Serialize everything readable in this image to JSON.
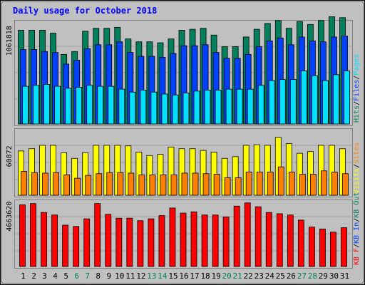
{
  "chart_data": [
    {
      "type": "bar",
      "title": "Daily usage for October 2018",
      "categories": [
        "1",
        "2",
        "3",
        "4",
        "5",
        "6",
        "7",
        "8",
        "9",
        "10",
        "11",
        "12",
        "13",
        "14",
        "15",
        "16",
        "17",
        "18",
        "19",
        "20",
        "21",
        "22",
        "23",
        "24",
        "25",
        "26",
        "27",
        "28",
        "29",
        "30",
        "31"
      ],
      "weekend_days": [
        "6",
        "7",
        "13",
        "14",
        "20",
        "21",
        "27",
        "28"
      ],
      "ylim": [
        0,
        1061818
      ],
      "scale_max_label": "1061818",
      "grid": true,
      "legend": {
        "placement": "right",
        "items": [
          {
            "label": "Hits",
            "color": "#00805c"
          },
          {
            "label": "Files",
            "color": "#0040ff"
          },
          {
            "label": "Pages",
            "color": "#00e0ff"
          }
        ],
        "separator": "/"
      },
      "series": [
        {
          "name": "Hits",
          "color": "#00805c",
          "values": [
            0.97,
            0.97,
            0.97,
            0.94,
            0.72,
            0.75,
            0.96,
            0.99,
            0.99,
            1.0,
            0.88,
            0.85,
            0.85,
            0.84,
            0.88,
            0.97,
            0.98,
            0.99,
            0.92,
            0.8,
            0.8,
            0.9,
            0.98,
            1.04,
            1.07,
            0.99,
            1.06,
            1.03,
            1.07,
            1.11,
            1.1
          ]
        },
        {
          "name": "Files",
          "color": "#0040ff",
          "values": [
            0.77,
            0.77,
            0.75,
            0.74,
            0.62,
            0.66,
            0.78,
            0.82,
            0.82,
            0.85,
            0.74,
            0.7,
            0.7,
            0.69,
            0.73,
            0.81,
            0.81,
            0.82,
            0.74,
            0.68,
            0.68,
            0.72,
            0.8,
            0.86,
            0.89,
            0.82,
            0.9,
            0.86,
            0.85,
            0.9,
            0.91
          ]
        },
        {
          "name": "Pages",
          "color": "#00e0ff",
          "values": [
            0.39,
            0.4,
            0.41,
            0.39,
            0.37,
            0.38,
            0.4,
            0.39,
            0.39,
            0.36,
            0.33,
            0.35,
            0.33,
            0.31,
            0.3,
            0.32,
            0.34,
            0.35,
            0.35,
            0.36,
            0.36,
            0.36,
            0.4,
            0.45,
            0.46,
            0.46,
            0.55,
            0.5,
            0.45,
            0.51,
            0.55
          ]
        }
      ]
    },
    {
      "type": "bar",
      "categories": [
        "1",
        "2",
        "3",
        "4",
        "5",
        "6",
        "7",
        "8",
        "9",
        "10",
        "11",
        "12",
        "13",
        "14",
        "15",
        "16",
        "17",
        "18",
        "19",
        "20",
        "21",
        "22",
        "23",
        "24",
        "25",
        "26",
        "27",
        "28",
        "29",
        "30",
        "31"
      ],
      "ylim": [
        0,
        60872
      ],
      "scale_max_label": "60872",
      "grid": true,
      "legend": {
        "placement": "right",
        "items": [
          {
            "label": "Visits",
            "color": "#ffff00"
          },
          {
            "label": "Sites",
            "color": "#ff8000"
          }
        ],
        "separator": "/"
      },
      "series": [
        {
          "name": "Visits",
          "color": "#ffff00",
          "values": [
            0.78,
            0.82,
            0.88,
            0.88,
            0.75,
            0.65,
            0.75,
            0.88,
            0.88,
            0.88,
            0.87,
            0.76,
            0.7,
            0.72,
            0.85,
            0.82,
            0.82,
            0.79,
            0.76,
            0.65,
            0.68,
            0.88,
            0.89,
            0.88,
            1.02,
            0.91,
            0.74,
            0.77,
            0.88,
            0.88,
            0.82
          ]
        },
        {
          "name": "Sites",
          "color": "#ff8000",
          "values": [
            0.42,
            0.4,
            0.39,
            0.4,
            0.36,
            0.3,
            0.35,
            0.38,
            0.4,
            0.4,
            0.39,
            0.36,
            0.36,
            0.36,
            0.36,
            0.39,
            0.39,
            0.38,
            0.37,
            0.31,
            0.31,
            0.41,
            0.41,
            0.41,
            0.5,
            0.41,
            0.37,
            0.37,
            0.43,
            0.41,
            0.38
          ]
        }
      ]
    },
    {
      "type": "bar",
      "categories": [
        "1",
        "2",
        "3",
        "4",
        "5",
        "6",
        "7",
        "8",
        "9",
        "10",
        "11",
        "12",
        "13",
        "14",
        "15",
        "16",
        "17",
        "18",
        "19",
        "20",
        "21",
        "22",
        "23",
        "24",
        "25",
        "26",
        "27",
        "28",
        "29",
        "30",
        "31"
      ],
      "ylim": [
        0,
        4663620
      ],
      "scale_max_label": "4663620",
      "grid": true,
      "legend": {
        "placement": "right",
        "items": [
          {
            "label": "KB F",
            "color": "#ff0000"
          },
          {
            "label": "KB In",
            "color": "#0040ff"
          },
          {
            "label": "KB Out",
            "color": "#00805c"
          }
        ],
        "separator": "/"
      },
      "series": [
        {
          "name": "KB F",
          "color": "#ff0000",
          "values": [
            0.97,
            0.99,
            0.85,
            0.81,
            0.65,
            0.63,
            0.75,
            0.99,
            0.82,
            0.76,
            0.76,
            0.72,
            0.75,
            0.8,
            0.92,
            0.84,
            0.86,
            0.81,
            0.81,
            0.78,
            0.95,
            1.0,
            0.94,
            0.85,
            0.83,
            0.81,
            0.73,
            0.62,
            0.59,
            0.54,
            0.61
          ]
        }
      ]
    }
  ],
  "colors": {
    "background": "#c0c0c0",
    "title": "#0000ff",
    "weekday_label": "#000000",
    "weekend_label": "#00805c",
    "panel_frame": "#808080"
  }
}
